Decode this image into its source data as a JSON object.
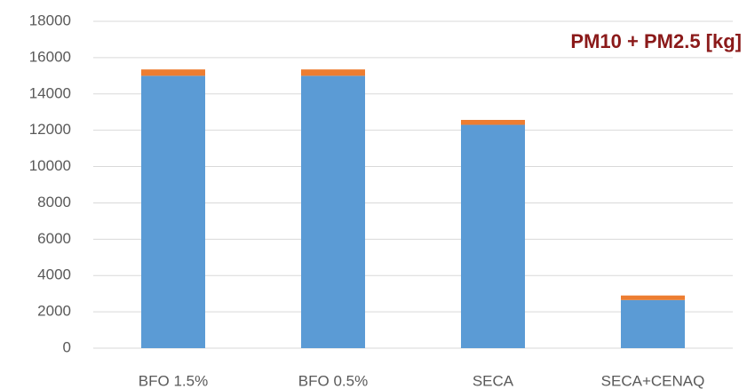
{
  "chart_data": {
    "type": "stacked_bar",
    "title": "PM10 + PM2.5 [kg]",
    "categories": [
      "BFO 1.5%",
      "BFO 0.5%",
      "SECA",
      "SECA+CENAQ"
    ],
    "series": [
      {
        "color": "#5b9bd5",
        "values": [
          15000,
          15000,
          12300,
          2650
        ]
      },
      {
        "color": "#ed7d31",
        "values": [
          350,
          350,
          270,
          250
        ]
      }
    ],
    "ylim": [
      0,
      18000
    ],
    "yticks": [
      0,
      2000,
      4000,
      6000,
      8000,
      10000,
      12000,
      14000,
      16000,
      18000
    ],
    "grid": true
  }
}
